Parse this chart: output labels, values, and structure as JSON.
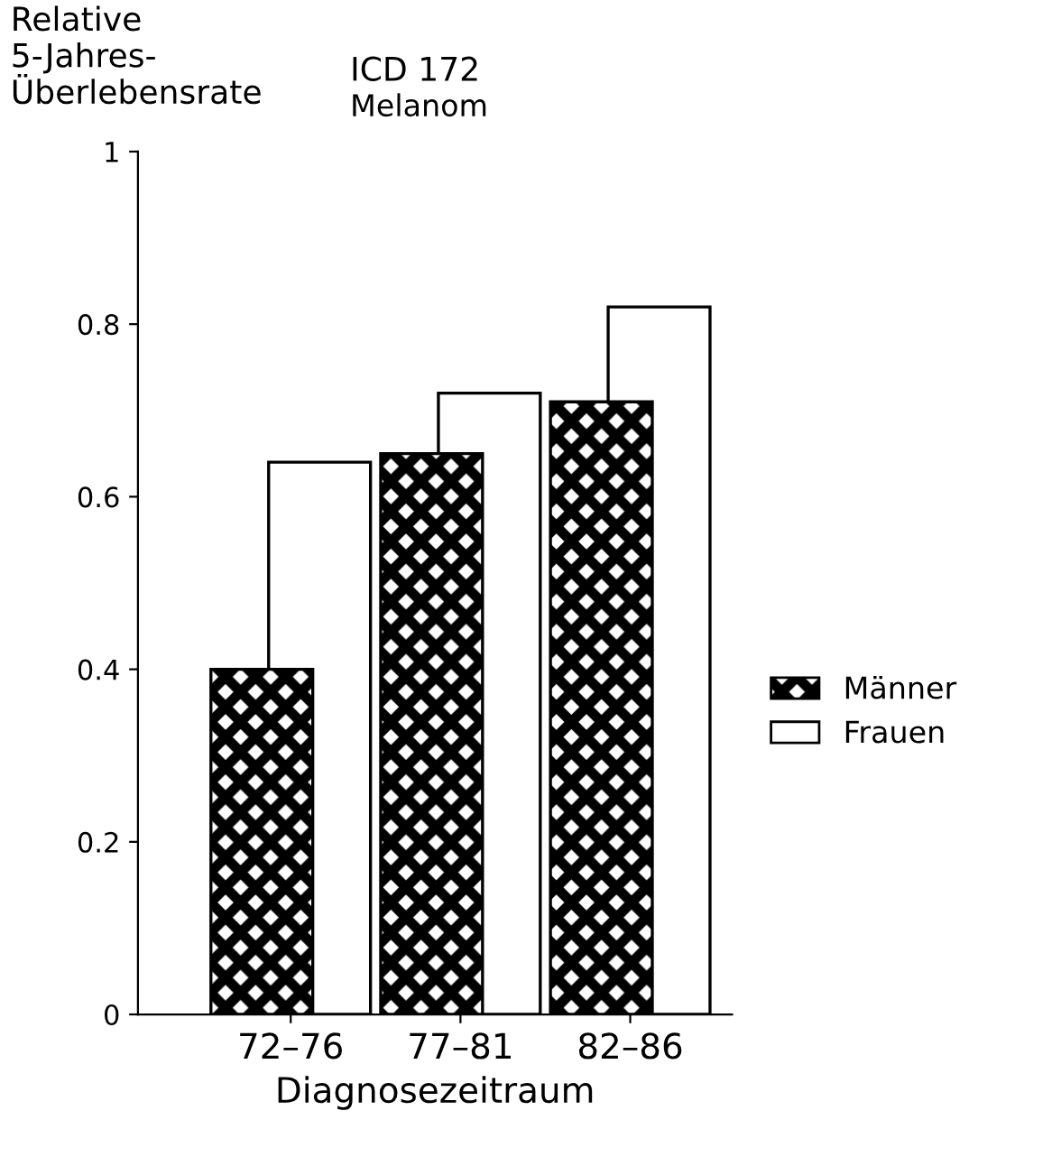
{
  "chart_data": {
    "type": "bar",
    "title": "ICD 172",
    "subtitle": "Melanom",
    "ylabel": "Relative\n5-Jahres-\nÜberlebensrate",
    "xlabel": "Diagnosezeitraum",
    "categories": [
      "72–76",
      "77–81",
      "82–86"
    ],
    "series": [
      {
        "name": "Männer",
        "color": "#000000",
        "values": [
          0.4,
          0.65,
          0.71
        ]
      },
      {
        "name": "Frauen",
        "color": "#ffffff",
        "values": [
          0.64,
          0.72,
          0.82
        ]
      }
    ],
    "ylim": [
      0,
      1
    ],
    "yticks": [
      0,
      0.2,
      0.4,
      0.6,
      0.8,
      1
    ],
    "grid": false,
    "legend": "right"
  }
}
